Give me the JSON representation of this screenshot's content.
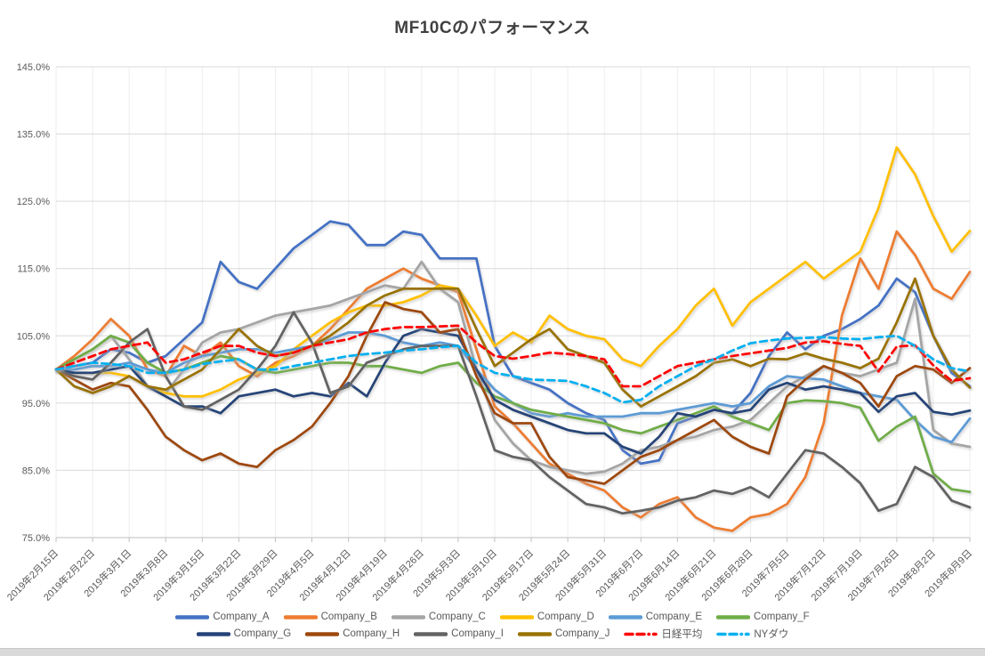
{
  "chart_data": {
    "type": "line",
    "title": "MF10Cのパフォーマンス",
    "legend_position": "bottom",
    "legend_items_per_row": 6,
    "grid": "horizontal-and-vertical",
    "y_axis": {
      "min": 75,
      "max": 145,
      "step": 10,
      "tick_labels": [
        "145.0%",
        "135.0%",
        "125.0%",
        "115.0%",
        "105.0%",
        "95.0%",
        "85.0%",
        "75.0%"
      ]
    },
    "x_tick_labels": [
      "2019年2月15日",
      "2019年2月22日",
      "2019年3月1日",
      "2019年3月8日",
      "2019年3月15日",
      "2019年3月22日",
      "2019年3月29日",
      "2019年4月5日",
      "2019年4月12日",
      "2019年4月19日",
      "2019年4月26日",
      "2019年5月3日",
      "2019年5月10日",
      "2019年5月17日",
      "2019年5月24日",
      "2019年5月31日",
      "2019年6月7日",
      "2019年6月14日",
      "2019年6月21日",
      "2019年6月28日",
      "2019年7月5日",
      "2019年7月12日",
      "2019年7月19日",
      "2019年7月26日",
      "2019年8月2日",
      "2019年8月9日"
    ],
    "points_per_tick_interval": 2,
    "unit": "percent",
    "series": [
      {
        "id": "company_a",
        "name": "Company_A",
        "color": "#4472C4",
        "dashed": false,
        "values": [
          100,
          100.5,
          101,
          103,
          102.5,
          101,
          102,
          104.5,
          107,
          116,
          113,
          112,
          115,
          118,
          120,
          122,
          121.5,
          118.5,
          118.5,
          120.5,
          120,
          116.5,
          116.5,
          116.5,
          103.5,
          99,
          98,
          97,
          95,
          93.5,
          92.5,
          88,
          86,
          86.5,
          92,
          93,
          94,
          93.5,
          96.5,
          102,
          105.5,
          103,
          105,
          106,
          107.5,
          109.5,
          113.5,
          111.5,
          105,
          99.5,
          97.5
        ]
      },
      {
        "id": "company_b",
        "name": "Company_B",
        "color": "#ED7D31",
        "dashed": false,
        "values": [
          100,
          102,
          104.5,
          107.5,
          105,
          100,
          99,
          103.5,
          102,
          104,
          100.5,
          99,
          101,
          102,
          103.5,
          106,
          109,
          112,
          113.5,
          115,
          113.5,
          112.5,
          111.5,
          103,
          94.5,
          92,
          89,
          86,
          84.5,
          83,
          82,
          79.5,
          78,
          80,
          81,
          78,
          76.5,
          76,
          78,
          78.5,
          80,
          84,
          92,
          108,
          116.5,
          112,
          120.5,
          117,
          112,
          110.5,
          114.5
        ]
      },
      {
        "id": "company_c",
        "name": "Company_C",
        "color": "#A5A5A5",
        "dashed": false,
        "values": [
          100,
          101.5,
          103,
          105,
          101.5,
          97.5,
          96.5,
          100,
          104,
          105.5,
          106,
          107,
          108,
          108.5,
          109,
          109.5,
          110.5,
          111.5,
          112.5,
          112,
          116,
          112,
          110,
          100,
          92.5,
          89,
          86.5,
          85.5,
          85,
          84.5,
          84.8,
          86,
          88,
          88.5,
          89.5,
          90,
          91,
          91.5,
          92.5,
          95,
          97.5,
          99,
          100.5,
          99.5,
          99,
          100,
          101,
          110.5,
          91,
          89,
          88.5
        ]
      },
      {
        "id": "company_d",
        "name": "Company_D",
        "color": "#FFC000",
        "dashed": false,
        "values": [
          100,
          99.5,
          99.5,
          99.5,
          99,
          97.5,
          96.5,
          96,
          96,
          97,
          98.5,
          99.5,
          100.5,
          103,
          105,
          107,
          108.5,
          109.5,
          109.5,
          110,
          111,
          112.5,
          112,
          108,
          103.5,
          105.5,
          104,
          108,
          106,
          105,
          104.5,
          101.5,
          100.5,
          103.5,
          106,
          109.5,
          112,
          106.5,
          110,
          112,
          114,
          116,
          113.5,
          115.5,
          117.5,
          124,
          133,
          129,
          122.8,
          117.5,
          120.6
        ]
      },
      {
        "id": "company_e",
        "name": "Company_E",
        "color": "#5B9BD5",
        "dashed": false,
        "values": [
          100,
          100,
          100.5,
          100.5,
          101,
          100,
          99.5,
          101,
          102,
          102.5,
          103,
          103,
          102.5,
          103,
          103.5,
          104.5,
          105.5,
          105.5,
          105,
          104,
          103.5,
          104,
          103.5,
          100,
          97,
          95,
          93.5,
          93,
          93.5,
          93,
          93,
          93,
          93.5,
          93.5,
          94,
          94.5,
          95,
          94.5,
          95,
          97.5,
          99,
          98.7,
          98.5,
          97.5,
          96.5,
          96,
          95.5,
          92.5,
          90,
          89.2,
          92.7
        ]
      },
      {
        "id": "company_f",
        "name": "Company_F",
        "color": "#70AD47",
        "dashed": false,
        "values": [
          100,
          101.5,
          103,
          105,
          104,
          101,
          99.5,
          100,
          101,
          102,
          101.5,
          100,
          99.5,
          100,
          100.5,
          101,
          101,
          100.5,
          100.5,
          100,
          99.5,
          100.5,
          101,
          98,
          96,
          95,
          94,
          93.5,
          93,
          92.5,
          92,
          91,
          90.5,
          91.5,
          92.5,
          93.5,
          94.5,
          93,
          92,
          91,
          95,
          95.4,
          95.3,
          95,
          94.3,
          89.4,
          91.5,
          93,
          84.5,
          82.2,
          81.8
        ]
      },
      {
        "id": "company_g",
        "name": "Company_G",
        "color": "#264478",
        "dashed": false,
        "values": [
          100,
          99.5,
          99.5,
          100,
          100.5,
          97.5,
          96,
          94.5,
          94.5,
          93.5,
          96,
          96.5,
          97,
          96,
          96.5,
          96,
          98,
          96,
          101,
          105,
          106,
          105.5,
          105,
          100,
          95.5,
          94,
          93,
          92,
          91,
          90.5,
          90.5,
          88.5,
          87.5,
          90,
          93.5,
          93,
          94,
          93.5,
          94,
          97,
          98,
          97,
          97.5,
          97,
          96.5,
          93.7,
          96,
          96.5,
          93.7,
          93.3,
          93.9
        ]
      },
      {
        "id": "company_h",
        "name": "Company_H",
        "color": "#9E480E",
        "dashed": false,
        "values": [
          100,
          98.5,
          97,
          98,
          97.5,
          94,
          90,
          88,
          86.5,
          87.5,
          86,
          85.5,
          88,
          89.5,
          91.5,
          95,
          99,
          105,
          110,
          109,
          108.5,
          105.5,
          106,
          99,
          93.5,
          92,
          92,
          87,
          84,
          83.5,
          83,
          85,
          87,
          88,
          89.5,
          91,
          92.5,
          90,
          88.5,
          87.5,
          96,
          98.5,
          100.5,
          99.5,
          98,
          94.5,
          99,
          100.5,
          100,
          98,
          100.2
        ]
      },
      {
        "id": "company_i",
        "name": "Company_I",
        "color": "#636363",
        "dashed": false,
        "values": [
          100,
          99,
          98.5,
          101,
          104,
          106,
          99,
          94.5,
          94,
          95.5,
          97,
          100,
          103.5,
          108.5,
          104,
          96.5,
          97.5,
          101,
          102,
          103,
          103.5,
          103.5,
          103.5,
          96,
          88,
          87,
          86.5,
          84,
          82,
          80,
          79.5,
          78.6,
          79,
          79.5,
          80.5,
          81,
          82,
          81.5,
          82.5,
          81,
          84.5,
          88,
          87.5,
          85.5,
          83.1,
          79,
          80,
          85.5,
          84,
          80.5,
          79.5
        ]
      },
      {
        "id": "company_j",
        "name": "Company_J",
        "color": "#997300",
        "dashed": false,
        "values": [
          100,
          97.5,
          96.5,
          97.5,
          99,
          97.5,
          97,
          98.5,
          100,
          103,
          106,
          103.5,
          102,
          102.5,
          103.5,
          105,
          107,
          109.5,
          111,
          112,
          112,
          112,
          112,
          106,
          100.5,
          102.5,
          104.5,
          106,
          103,
          102,
          101,
          97,
          94.5,
          96,
          97.5,
          99,
          101,
          101.5,
          100.5,
          101.6,
          101.5,
          102.4,
          101.6,
          101,
          100.2,
          101.6,
          107,
          113.5,
          105,
          100,
          97.3
        ]
      },
      {
        "id": "nikkei",
        "name": "日経平均",
        "color": "#FF0000",
        "dashed": true,
        "values": [
          100,
          101,
          102,
          103,
          103.5,
          104,
          101,
          101.5,
          102.5,
          103.5,
          103.5,
          102.5,
          102,
          102.5,
          103.5,
          104,
          104.5,
          105.5,
          106,
          106.3,
          106.3,
          106.4,
          106.5,
          104,
          102,
          101.6,
          102,
          102.5,
          102.3,
          102,
          101.5,
          97.5,
          97.5,
          99,
          100.5,
          101,
          101.5,
          102,
          102.4,
          102.8,
          103.2,
          104,
          104.2,
          103.8,
          103.5,
          99.7,
          103.4,
          103.6,
          100.6,
          98.3,
          98.7
        ]
      },
      {
        "id": "nydow",
        "name": "NYダウ",
        "color": "#00B0F0",
        "dashed": true,
        "values": [
          100,
          100.5,
          101,
          100.8,
          100.5,
          99.5,
          99.5,
          100,
          100.8,
          101.2,
          101.5,
          100,
          100,
          100.5,
          101,
          101.5,
          102,
          102.3,
          102.5,
          102.8,
          103,
          103.3,
          103.5,
          101,
          99.5,
          99,
          98.5,
          98.4,
          98.3,
          97.5,
          96.5,
          95.1,
          95.5,
          97.5,
          99,
          100.5,
          101.5,
          102.8,
          103.9,
          104.3,
          104.6,
          104.7,
          104.8,
          104.6,
          104.5,
          104.8,
          105,
          103.5,
          101.5,
          100.2,
          99.7
        ]
      }
    ],
    "colors": {
      "grid_h": "#D9D9D9",
      "grid_v": "#EDEDED",
      "axis": "#BFBFBF",
      "tick_text": "#595959",
      "title_text": "#404040"
    }
  }
}
